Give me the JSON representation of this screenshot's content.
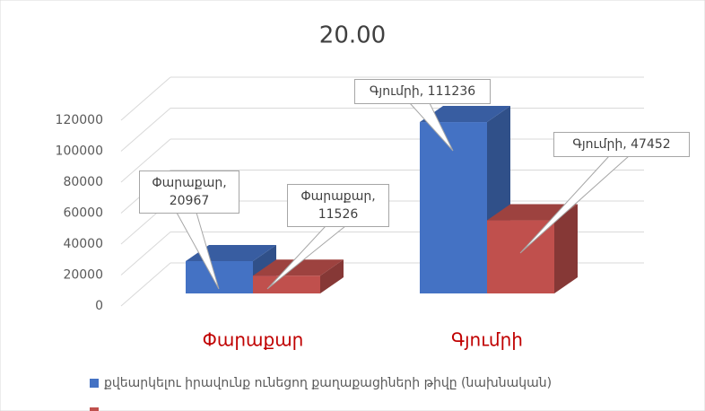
{
  "chart_data": {
    "type": "bar3d",
    "title": "20.00",
    "categories": [
      "Փարաքար",
      "Գյումրի"
    ],
    "series": [
      {
        "name": "քվեարկելու իրավունք ունեցող քաղաքացիների թիվը  (նախնական)",
        "color": "#4472c4",
        "values": [
          20967,
          111236
        ],
        "value_labels": [
          "Փարաքար, 20967",
          "Գյումրի, 111236"
        ]
      },
      {
        "color": "#c0504d",
        "values": [
          11526,
          47452
        ],
        "value_labels": [
          "Փարաքար, 11526",
          "Գյումրի, 47452"
        ]
      }
    ],
    "ylim": [
      0,
      120000
    ],
    "yticks": [
      0,
      20000,
      40000,
      60000,
      80000,
      100000,
      120000
    ],
    "grid": true
  }
}
